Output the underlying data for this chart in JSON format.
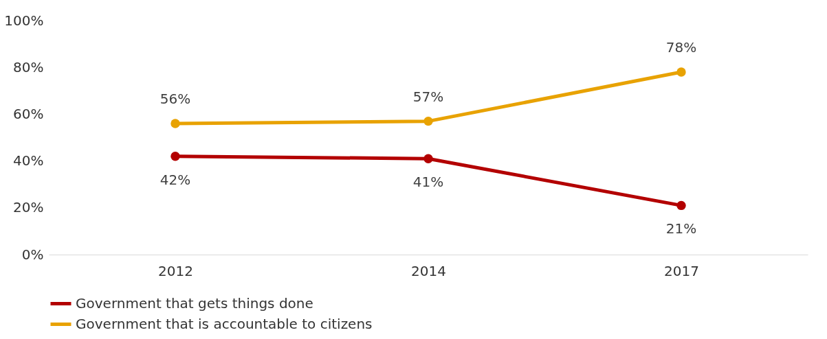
{
  "chart_data": {
    "type": "line",
    "categories": [
      "2012",
      "2014",
      "2017"
    ],
    "series": [
      {
        "name": "Government that gets things done",
        "color": "#b30000",
        "values": [
          42,
          41,
          21
        ],
        "value_labels": [
          "42%",
          "41%",
          "21%"
        ]
      },
      {
        "name": "Government that is accountable to citizens",
        "color": "#e8a202",
        "values": [
          56,
          57,
          78
        ],
        "value_labels": [
          "56%",
          "57%",
          "78%"
        ]
      }
    ],
    "ylim": [
      0,
      100
    ],
    "yticks": [
      {
        "value": 0,
        "label": "0%"
      },
      {
        "value": 20,
        "label": "20%"
      },
      {
        "value": 40,
        "label": "40%"
      },
      {
        "value": 60,
        "label": "60%"
      },
      {
        "value": 80,
        "label": "80%"
      },
      {
        "value": 100,
        "label": "100%"
      }
    ],
    "grid": false,
    "legend": "bottom",
    "marker": "circle",
    "line_style": "solid"
  }
}
